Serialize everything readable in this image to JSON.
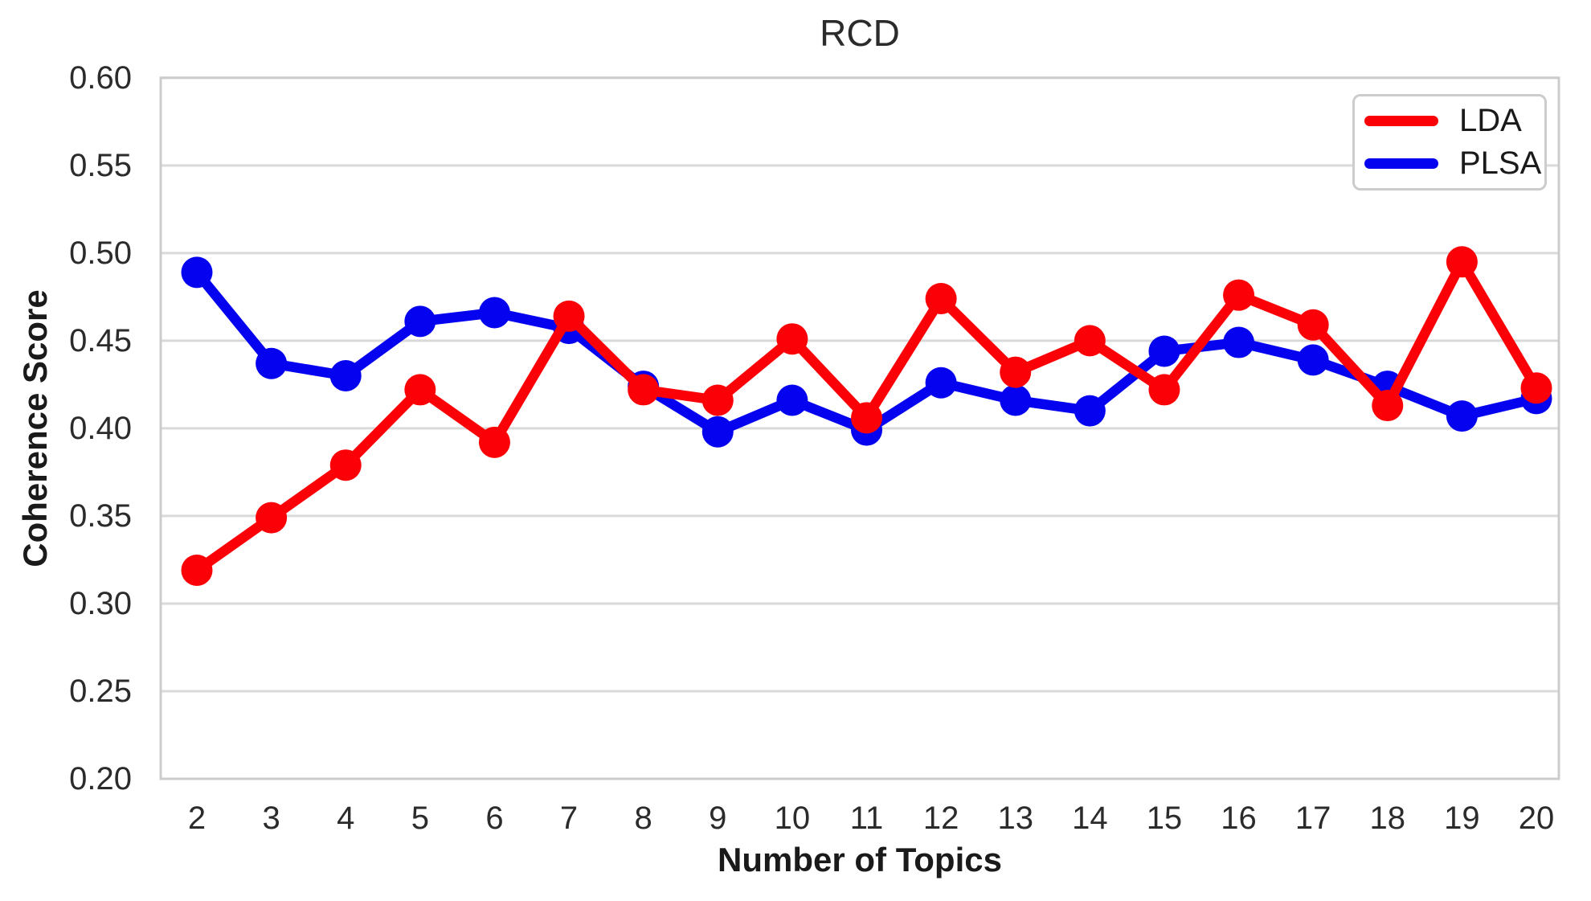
{
  "chart_data": {
    "type": "line",
    "title": "RCD",
    "xlabel": "Number of Topics",
    "ylabel": "Coherence Score",
    "x": [
      2,
      3,
      4,
      5,
      6,
      7,
      8,
      9,
      10,
      11,
      12,
      13,
      14,
      15,
      16,
      17,
      18,
      19,
      20
    ],
    "series": [
      {
        "name": "LDA",
        "color": "#fb0006",
        "values": [
          0.319,
          0.349,
          0.379,
          0.422,
          0.392,
          0.464,
          0.422,
          0.416,
          0.451,
          0.406,
          0.474,
          0.432,
          0.45,
          0.422,
          0.476,
          0.459,
          0.413,
          0.495,
          0.423
        ]
      },
      {
        "name": "PLSA",
        "color": "#0502f0",
        "values": [
          0.489,
          0.437,
          0.43,
          0.461,
          0.466,
          0.457,
          0.424,
          0.398,
          0.416,
          0.399,
          0.426,
          0.416,
          0.41,
          0.444,
          0.449,
          0.439,
          0.424,
          0.407,
          0.417
        ]
      }
    ],
    "ylim": [
      0.2,
      0.6
    ],
    "ytick_labels": [
      "0.20",
      "0.25",
      "0.30",
      "0.35",
      "0.40",
      "0.45",
      "0.50",
      "0.55",
      "0.60"
    ],
    "grid": true,
    "legend_position": "upper right",
    "grid_color": "#d9d9d9",
    "spine_color": "#cccccc",
    "text_color": "#2b2b2b"
  }
}
